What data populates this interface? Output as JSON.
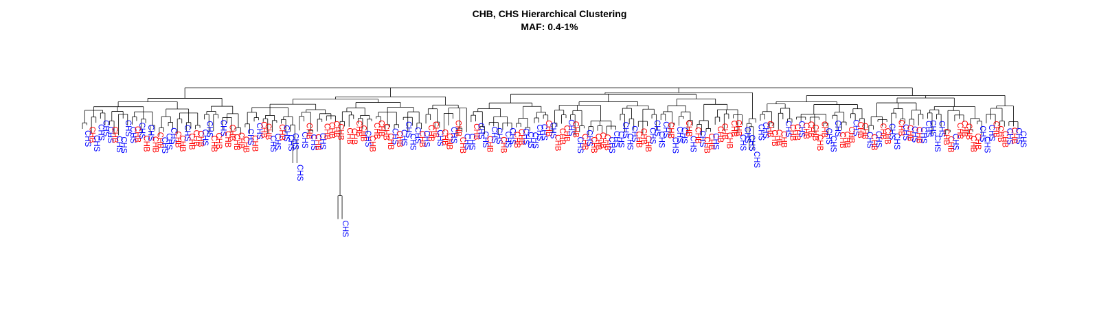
{
  "chart_data": {
    "type": "dendrogram",
    "title": "CHB, CHS Hierarchical Clustering",
    "subtitle": "MAF: 0.4-1%",
    "leaf_colors": {
      "CHB": "#ff0000",
      "CHS": "#0000ff"
    },
    "groups": [
      "CHB",
      "CHS"
    ],
    "leaf_count": 208,
    "top_merge_height": 1.0,
    "long_branches": [
      {
        "label": "CHS",
        "merge_height": 0.6,
        "leaf_height": -0.1
      },
      {
        "label": "CHS",
        "merge_height": 0.56,
        "leaf_height": -0.44
      },
      {
        "label": "CHS",
        "merge_height": 0.76,
        "leaf_height": -0.02
      }
    ],
    "grid": false,
    "legend": "none"
  }
}
